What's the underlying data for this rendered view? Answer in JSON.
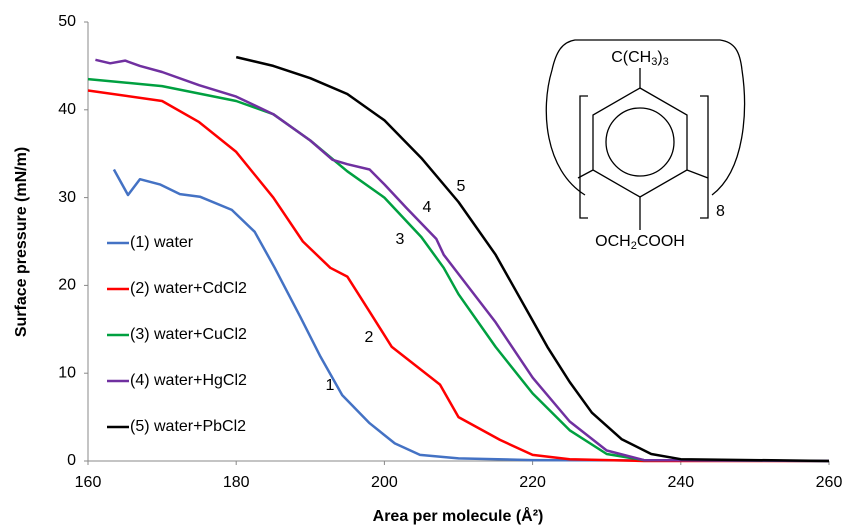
{
  "chart_data": {
    "type": "line",
    "xlabel": "Area per molecule (Å²)",
    "ylabel": "Surface pressure (mN/m)",
    "xlim": [
      160,
      260
    ],
    "xticks": [
      160,
      180,
      200,
      220,
      240,
      260
    ],
    "ylim": [
      0,
      50
    ],
    "yticks": [
      0,
      10,
      20,
      30,
      40,
      50
    ],
    "grid": false,
    "legend": "left",
    "series": [
      {
        "name": "(1) water",
        "color": "#4472c4",
        "x": [
          163.5,
          165.4,
          167,
          169.7,
          172.4,
          175.1,
          179.4,
          182.5,
          185.2,
          188.6,
          191.3,
          194.3,
          198,
          201.4,
          204.8,
          210,
          220,
          260
        ],
        "values": [
          33.2,
          30.3,
          32.1,
          31.5,
          30.4,
          30.1,
          28.6,
          26.1,
          22,
          16.5,
          12,
          7.5,
          4.3,
          2,
          0.7,
          0.3,
          0.1,
          0
        ]
      },
      {
        "name": "(2) water+CdCl2",
        "color": "#ff0000",
        "x": [
          160,
          170,
          175,
          180,
          185,
          189,
          192.7,
          195,
          198,
          201,
          207.5,
          210,
          215.6,
          220,
          225,
          235,
          260
        ],
        "values": [
          42.2,
          41,
          38.6,
          35.2,
          30,
          25,
          22,
          21,
          17,
          13,
          8.7,
          5,
          2.4,
          0.7,
          0.2,
          0,
          0
        ]
      },
      {
        "name": "(3) water+CuCl2",
        "color": "#00a040",
        "x": [
          160,
          170,
          180,
          185,
          190,
          195,
          200,
          205,
          208,
          210,
          215,
          220,
          225,
          230,
          235,
          260
        ],
        "values": [
          43.5,
          42.7,
          41,
          39.5,
          36.5,
          33,
          30,
          25.5,
          22,
          19,
          13,
          7.7,
          3.5,
          0.8,
          0.1,
          0
        ]
      },
      {
        "name": "(4) water+HgCl2",
        "color": "#7030a0",
        "x": [
          161,
          163,
          165,
          167,
          170,
          175,
          180,
          185,
          190,
          193,
          195,
          198,
          200,
          203,
          207,
          208,
          210,
          215,
          220,
          225,
          230,
          235,
          260
        ],
        "values": [
          45.7,
          45.3,
          45.6,
          45,
          44.3,
          42.8,
          41.5,
          39.5,
          36.5,
          34.3,
          33.8,
          33.2,
          31.5,
          28.8,
          25.3,
          23.5,
          21.3,
          15.8,
          9.5,
          4.5,
          1.2,
          0.1,
          0
        ]
      },
      {
        "name": "(5) water+PbCl2",
        "color": "#000000",
        "x": [
          180,
          185,
          190,
          195,
          200,
          205,
          210,
          215,
          220,
          222,
          225,
          228,
          232,
          236,
          240,
          260
        ],
        "values": [
          46,
          45,
          43.6,
          41.8,
          38.8,
          34.5,
          29.5,
          23.5,
          16,
          13,
          9,
          5.5,
          2.5,
          0.8,
          0.2,
          0
        ]
      }
    ],
    "curve_labels": [
      "1",
      "2",
      "3",
      "4",
      "5"
    ],
    "structure": {
      "top": "C(CH3)3",
      "repeat": "8",
      "bottom": "OCH2COOH"
    }
  }
}
